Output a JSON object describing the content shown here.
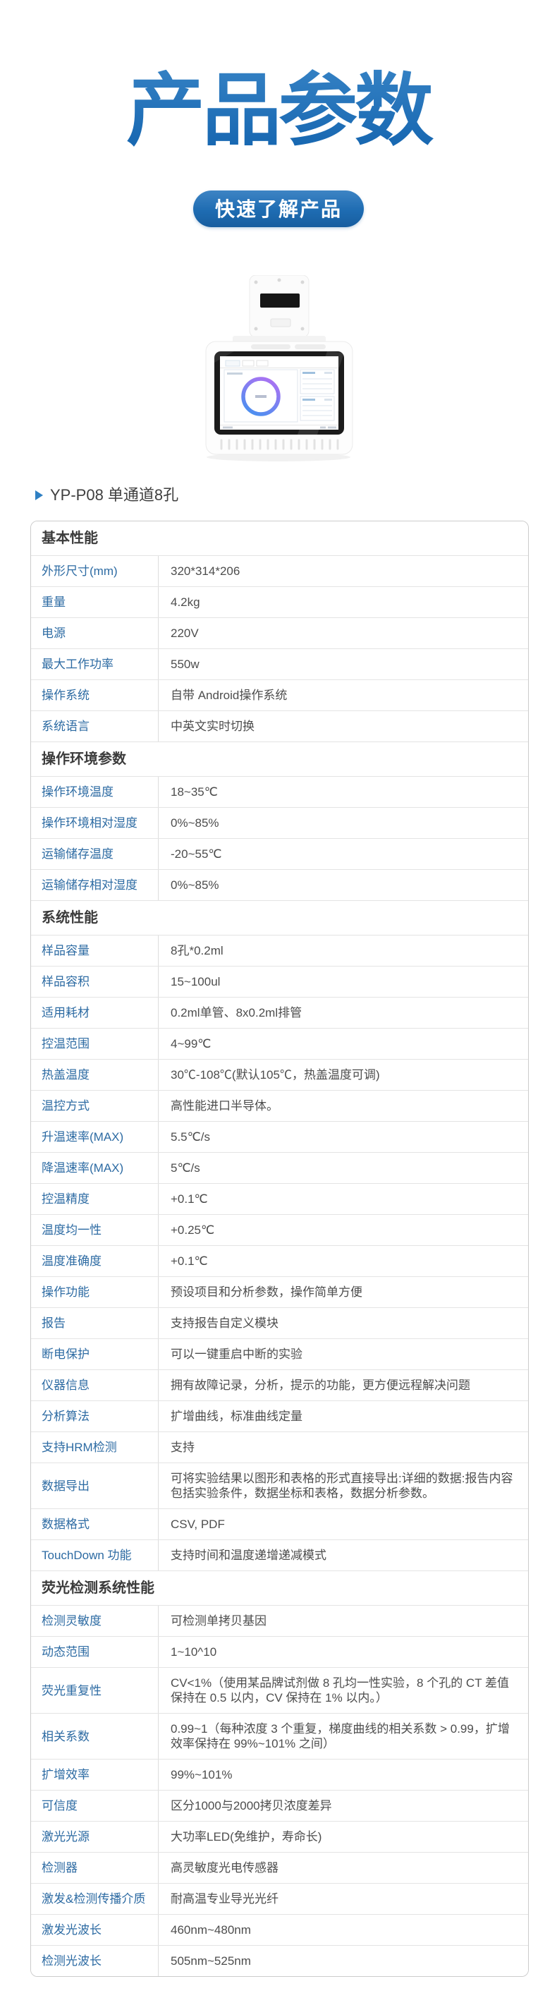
{
  "header": {
    "title": "产品参数",
    "quick_button_label": "快速了解产品",
    "product_heading": "YP-P08 单通道8孔"
  },
  "colors": {
    "title_gradient_top": "#4c96d3",
    "title_gradient_bottom": "#1767b1",
    "button_blue_top": "#3e84c4",
    "button_blue_bottom": "#175d9f",
    "label_blue": "#2d6ba3",
    "value_text": "#4d4d4d",
    "table_border": "#cccccc",
    "row_divider": "#e4e4e4"
  },
  "icons": {
    "heading_bullet": "triangle-right-icon",
    "device_picture": "pcr-device-photo"
  },
  "spec_table": {
    "sections": [
      {
        "title": "基本性能",
        "rows": [
          {
            "label": "外形尺寸(mm)",
            "value": "320*314*206"
          },
          {
            "label": "重量",
            "value": "4.2kg"
          },
          {
            "label": "电源",
            "value": "220V"
          },
          {
            "label": "最大工作功率",
            "value": "550w"
          },
          {
            "label": "操作系统",
            "value": "自带 Android操作系统"
          },
          {
            "label": "系统语言",
            "value": "中英文实时切换"
          }
        ]
      },
      {
        "title": "操作环境参数",
        "rows": [
          {
            "label": "操作环境温度",
            "value": "18~35℃"
          },
          {
            "label": "操作环境相对湿度",
            "value": "0%~85%"
          },
          {
            "label": "运输储存温度",
            "value": "-20~55℃"
          },
          {
            "label": "运输储存相对湿度",
            "value": "0%~85%"
          }
        ]
      },
      {
        "title": "系统性能",
        "rows": [
          {
            "label": "样品容量",
            "value": "8孔*0.2ml"
          },
          {
            "label": "样品容积",
            "value": "15~100ul"
          },
          {
            "label": "适用耗材",
            "value": "0.2ml单管、8x0.2ml排管"
          },
          {
            "label": "控温范围",
            "value": "4~99℃"
          },
          {
            "label": "热盖温度",
            "value": "30℃-108℃(默认105℃，热盖温度可调)"
          },
          {
            "label": "温控方式",
            "value": "高性能进口半导体。"
          },
          {
            "label": "升温速率(MAX)",
            "value": "5.5℃/s"
          },
          {
            "label": "降温速率(MAX)",
            "value": "5℃/s"
          },
          {
            "label": "控温精度",
            "value": "+0.1℃"
          },
          {
            "label": "温度均一性",
            "value": "+0.25℃"
          },
          {
            "label": "温度准确度",
            "value": "+0.1℃"
          },
          {
            "label": "操作功能",
            "value": "预设项目和分析参数，操作简单方便"
          },
          {
            "label": "报告",
            "value": "支持报告自定义模块"
          },
          {
            "label": "断电保护",
            "value": "可以一键重启中断的实验"
          },
          {
            "label": "仪器信息",
            "value": "拥有故障记录，分析，提示的功能，更方便远程解决问题"
          },
          {
            "label": "分析算法",
            "value": "扩增曲线，标准曲线定量"
          },
          {
            "label": "支持HRM检测",
            "value": "支持"
          },
          {
            "label": "数据导出",
            "value": "可将实验结果以图形和表格的形式直接导出:详细的数据:报告内容包括实验条件，数据坐标和表格，数据分析参数。"
          },
          {
            "label": "数据格式",
            "value": "CSV, PDF"
          },
          {
            "label": "TouchDown 功能",
            "value": "支持时间和温度递增递减模式"
          }
        ]
      },
      {
        "title": "荧光检测系统性能",
        "rows": [
          {
            "label": "检测灵敏度",
            "value": "可检测单拷贝基因"
          },
          {
            "label": "动态范围",
            "value": "1~10^10"
          },
          {
            "label": "荧光重复性",
            "value": "CV<1%（使用某品牌试剂做 8 孔均一性实验，8 个孔的 CT 差值保持在 0.5 以内，CV 保持在 1% 以内。）"
          },
          {
            "label": "相关系数",
            "value": "0.99~1（每种浓度 3 个重复，梯度曲线的相关系数 > 0.99，扩增效率保持在 99%~101% 之间）"
          },
          {
            "label": "扩增效率",
            "value": "99%~101%"
          },
          {
            "label": "可信度",
            "value": "区分1000与2000拷贝浓度差异"
          },
          {
            "label": "激光光源",
            "value": "大功率LED(免维护，寿命长)"
          },
          {
            "label": "检测器",
            "value": "高灵敏度光电传感器"
          },
          {
            "label": "激发&检测传播介质",
            "value": "耐高温专业导光光纤"
          },
          {
            "label": "激发光波长",
            "value": "460nm~480nm"
          },
          {
            "label": "检测光波长",
            "value": "505nm~525nm"
          }
        ]
      }
    ]
  }
}
